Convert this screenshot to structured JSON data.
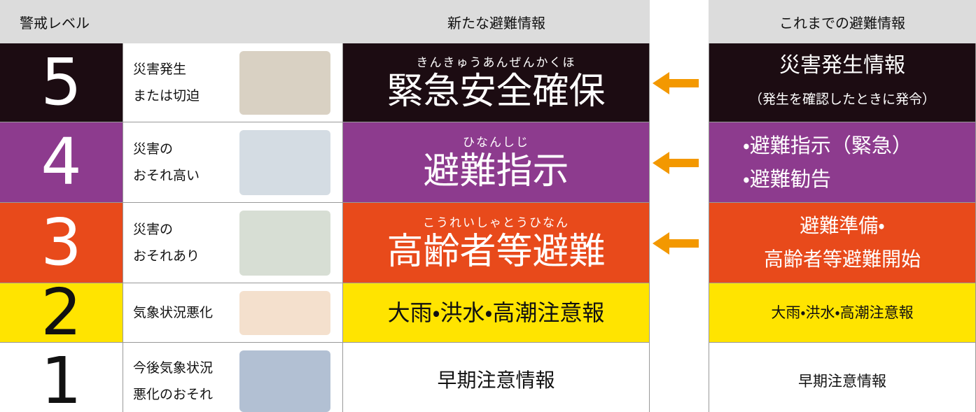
{
  "header": {
    "level": "警戒レベル",
    "new": "新たな避難情報",
    "old": "これまでの避難情報"
  },
  "rows": [
    {
      "level": "5",
      "situation": [
        "災害発生",
        "または切迫"
      ],
      "ruby": "きんきゅうあんぜんかくほ",
      "new": "緊急安全確保",
      "old": [
        "災害発生情報",
        "（発生を確認したときに発令）"
      ]
    },
    {
      "level": "4",
      "situation": [
        "災害の",
        "おそれ高い"
      ],
      "ruby": "ひなんしじ",
      "new": "避難指示",
      "old": [
        "・避難指示（緊急）",
        "・避難勧告"
      ]
    },
    {
      "level": "3",
      "situation": [
        "災害の",
        "おそれあり"
      ],
      "ruby": "こうれいしゃとうひなん",
      "new": "高齢者等避難",
      "old": [
        "避難準備・",
        "高齢者等避難開始"
      ]
    },
    {
      "level": "2",
      "situation": [
        "気象状況悪化"
      ],
      "new": "大雨・洪水・高潮注意報",
      "old": [
        "大雨・洪水・高潮注意報"
      ]
    },
    {
      "level": "1",
      "situation": [
        "今後気象状況",
        "悪化のおそれ"
      ],
      "new": "早期注意情報",
      "old": [
        "早期注意情報"
      ]
    }
  ]
}
